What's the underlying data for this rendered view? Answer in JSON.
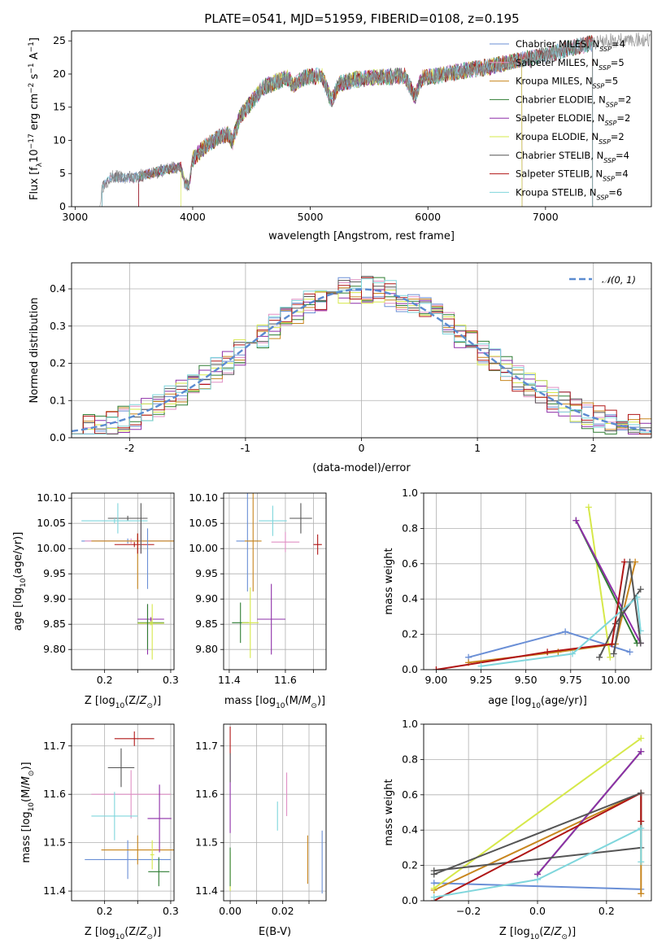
{
  "figure_title": "PLATE=0541, MJD=51959, FIBERID=0108, z=0.195",
  "colors": {
    "chabrier_miles": "#6a8fd6",
    "salpeter_miles": "#e08fc4",
    "kroupa_miles": "#c8861e",
    "chabrier_elodie": "#2e7d32",
    "salpeter_elodie": "#8e2fa8",
    "kroupa_elodie": "#d6e84a",
    "chabrier_stelib": "#555555",
    "salpeter_stelib": "#b01616",
    "kroupa_stelib": "#7fd6dc"
  },
  "chart_data": [
    {
      "id": "spectrum",
      "type": "line",
      "title": "PLATE=0541, MJD=51959, FIBERID=0108, z=0.195",
      "xlabel": "wavelength [Angstrom, rest frame]",
      "ylabel_parts": [
        "Flux [f",
        "λ",
        "10",
        "−17",
        " erg cm",
        "−2",
        " s",
        "−1",
        " A",
        "−1",
        "]"
      ],
      "xlim": [
        2970,
        7900
      ],
      "ylim": [
        0,
        26.5
      ],
      "xticks": [
        3000,
        4000,
        5000,
        6000,
        7000
      ],
      "yticks": [
        0,
        5,
        10,
        15,
        20,
        25
      ],
      "continuum": [
        [
          3210,
          0
        ],
        [
          3230,
          3.0
        ],
        [
          3300,
          4.5
        ],
        [
          3500,
          4.3
        ],
        [
          3700,
          5.3
        ],
        [
          3900,
          6.0
        ],
        [
          3935,
          3.4
        ],
        [
          3970,
          3.3
        ],
        [
          4000,
          7.2
        ],
        [
          4100,
          9.0
        ],
        [
          4200,
          10.2
        ],
        [
          4300,
          11.0
        ],
        [
          4340,
          9.8
        ],
        [
          4400,
          13.5
        ],
        [
          4600,
          18.0
        ],
        [
          4800,
          19.5
        ],
        [
          4860,
          18.3
        ],
        [
          4950,
          19.5
        ],
        [
          5100,
          19.8
        ],
        [
          5175,
          16.0
        ],
        [
          5250,
          18.6
        ],
        [
          5400,
          19.2
        ],
        [
          5600,
          19.5
        ],
        [
          5800,
          19.8
        ],
        [
          5890,
          16.6
        ],
        [
          5950,
          19.4
        ],
        [
          6100,
          19.8
        ],
        [
          6300,
          20.5
        ],
        [
          6500,
          21.0
        ],
        [
          6700,
          21.8
        ],
        [
          6900,
          22.5
        ],
        [
          7100,
          23.3
        ],
        [
          7300,
          24.3
        ],
        [
          7500,
          25.0
        ],
        [
          7800,
          25.2
        ],
        [
          7890,
          25.2
        ]
      ],
      "model_starts": [
        3230,
        3230,
        3540,
        3540,
        3540,
        3900,
        3230,
        3540,
        3230
      ],
      "model_ends": [
        7400,
        7400,
        6800,
        7400,
        6800,
        6800,
        7400,
        7400,
        7400
      ],
      "legend": [
        {
          "name": "Chabrier MILES",
          "n": "4",
          "color": "#6a8fd6"
        },
        {
          "name": "Salpeter MILES",
          "n": "5",
          "color": "#e08fc4"
        },
        {
          "name": "Kroupa MILES",
          "n": "5",
          "color": "#c8861e"
        },
        {
          "name": "Chabrier ELODIE",
          "n": "2",
          "color": "#2e7d32"
        },
        {
          "name": "Salpeter ELODIE",
          "n": "2",
          "color": "#8e2fa8"
        },
        {
          "name": "Kroupa ELODIE",
          "n": "2",
          "color": "#d6e84a"
        },
        {
          "name": "Chabrier STELIB",
          "n": "4",
          "color": "#555555"
        },
        {
          "name": "Salpeter STELIB",
          "n": "4",
          "color": "#b01616"
        },
        {
          "name": "Kroupa STELIB",
          "n": "6",
          "color": "#7fd6dc"
        }
      ],
      "legend_sub": "SSP",
      "legend_placement": "right"
    },
    {
      "id": "residuals",
      "type": "step-histogram",
      "xlabel": "(data-model)/error",
      "ylabel": "Normed distribution",
      "xlim": [
        -2.5,
        2.5
      ],
      "ylim": [
        0,
        0.47
      ],
      "xticks": [
        -2,
        -1,
        0,
        1,
        2
      ],
      "yticks": [
        0.0,
        0.1,
        0.2,
        0.3,
        0.4
      ],
      "bin_width": 0.1,
      "bin_start": -2.5,
      "grid": true,
      "legend_label": "𝒩(0, 1)",
      "legend_color": "#5b8bd0",
      "legend_placement": "top-right",
      "series_colors": [
        "#6a8fd6",
        "#e08fc4",
        "#c8861e",
        "#2e7d32",
        "#8e2fa8",
        "#d6e84a",
        "#555555",
        "#b01616",
        "#7fd6dc"
      ]
    },
    {
      "id": "age_vs_z",
      "type": "errorbar",
      "xlabel": "Z [log10(Z/Z⊙)]",
      "ylabel": "age  [log10(age/yr)]",
      "xlim": [
        0.15,
        0.305
      ],
      "ylim": [
        9.76,
        10.11
      ],
      "xticks": [
        0.2,
        0.25,
        0.3
      ],
      "xticklabels": [
        "0.2",
        "",
        "0.3"
      ],
      "yticks": [
        9.8,
        9.85,
        9.9,
        9.95,
        10.0,
        10.05,
        10.1
      ],
      "grid": true,
      "points": [
        {
          "x": 0.235,
          "xe": 0.07,
          "y": 10.015,
          "ye": 0.005,
          "c": "#6a8fd6"
        },
        {
          "x": 0.24,
          "xe": 0.07,
          "y": 10.015,
          "ye": 0.005,
          "c": "#e08fc4"
        },
        {
          "x": 0.25,
          "xe": 0.07,
          "y": 10.015,
          "ye": 0.005,
          "c": "#c8861e"
        },
        {
          "x": 0.27,
          "xe": 0.02,
          "y": 9.853,
          "ye": 0.004,
          "c": "#2e7d32"
        },
        {
          "x": 0.27,
          "xe": 0.02,
          "y": 9.86,
          "ye": 0.004,
          "c": "#8e2fa8"
        },
        {
          "x": 0.27,
          "xe": 0.02,
          "y": 9.852,
          "ye": 0.004,
          "c": "#d6e84a"
        },
        {
          "x": 0.235,
          "xe": 0.03,
          "y": 10.06,
          "ye": 0.005,
          "c": "#555555"
        },
        {
          "x": 0.245,
          "xe": 0.03,
          "y": 10.008,
          "ye": 0.005,
          "c": "#b01616"
        },
        {
          "x": 0.215,
          "xe": 0.05,
          "y": 10.055,
          "ye": 0.005,
          "c": "#7fd6dc"
        }
      ],
      "vbars": [
        {
          "x": 0.25,
          "y0": 9.92,
          "y1": 10.03,
          "c": "#c8861e"
        },
        {
          "x": 0.265,
          "y0": 9.92,
          "y1": 10.04,
          "c": "#6a8fd6"
        },
        {
          "x": 0.255,
          "y0": 9.99,
          "y1": 10.05,
          "c": "#e08fc4"
        },
        {
          "x": 0.255,
          "y0": 9.99,
          "y1": 10.09,
          "c": "#555555"
        },
        {
          "x": 0.265,
          "y0": 9.79,
          "y1": 9.89,
          "c": "#8e2fa8"
        },
        {
          "x": 0.272,
          "y0": 9.78,
          "y1": 9.89,
          "c": "#d6e84a"
        },
        {
          "x": 0.265,
          "y0": 9.8,
          "y1": 9.89,
          "c": "#2e7d32"
        },
        {
          "x": 0.25,
          "y0": 9.99,
          "y1": 10.03,
          "c": "#b01616"
        },
        {
          "x": 0.22,
          "y0": 10.03,
          "y1": 10.09,
          "c": "#7fd6dc"
        }
      ]
    },
    {
      "id": "age_vs_mass",
      "type": "errorbar",
      "xlabel": "mass [log10(M/M⊙)]",
      "xlim": [
        11.38,
        11.745
      ],
      "ylim": [
        9.76,
        10.11
      ],
      "xticks": [
        11.4,
        11.5,
        11.6,
        11.7
      ],
      "xticklabels": [
        "11.4",
        "",
        "11.6",
        ""
      ],
      "yticks": [
        9.8,
        9.85,
        9.9,
        9.95,
        10.0,
        10.05,
        10.1
      ],
      "grid": true,
      "points": [
        {
          "x": 11.465,
          "xe": 0.04,
          "y": 10.015,
          "ye": 0.1,
          "c": "#6a8fd6"
        },
        {
          "x": 11.6,
          "xe": 0.05,
          "y": 10.013,
          "ye": 0.02,
          "c": "#e08fc4"
        },
        {
          "x": 11.485,
          "xe": 0.03,
          "y": 10.015,
          "ye": 0.1,
          "c": "#c8861e"
        },
        {
          "x": 11.44,
          "xe": 0.03,
          "y": 9.853,
          "ye": 0.04,
          "c": "#2e7d32"
        },
        {
          "x": 11.55,
          "xe": 0.05,
          "y": 9.86,
          "ye": 0.07,
          "c": "#8e2fa8"
        },
        {
          "x": 11.475,
          "xe": 0.03,
          "y": 9.853,
          "ye": 0.07,
          "c": "#d6e84a"
        },
        {
          "x": 11.655,
          "xe": 0.04,
          "y": 10.06,
          "ye": 0.03,
          "c": "#555555"
        },
        {
          "x": 11.715,
          "xe": 0.015,
          "y": 10.008,
          "ye": 0.02,
          "c": "#b01616"
        },
        {
          "x": 11.555,
          "xe": 0.05,
          "y": 10.055,
          "ye": 0.03,
          "c": "#7fd6dc"
        }
      ]
    },
    {
      "id": "weight_vs_age",
      "type": "line",
      "xlabel": "age  [log10(age/yr)]",
      "ylabel": "mass weight",
      "xlim": [
        8.93,
        10.2
      ],
      "ylim": [
        0,
        1.0
      ],
      "xticks": [
        9.0,
        9.25,
        9.5,
        9.75,
        10.0
      ],
      "xticklabels": [
        "9.00",
        "9.25",
        "9.50",
        "9.75",
        "10.00"
      ],
      "yticks": [
        0.0,
        0.2,
        0.4,
        0.6,
        0.8,
        1.0
      ],
      "grid": true,
      "series": [
        {
          "c": "#6a8fd6",
          "x": [
            9.18,
            9.72,
            10.08
          ],
          "y": [
            0.07,
            0.215,
            0.1
          ]
        },
        {
          "c": "#c8861e",
          "x": [
            9.18,
            9.68,
            10.0,
            10.11
          ],
          "y": [
            0.04,
            0.1,
            0.145,
            0.61
          ]
        },
        {
          "c": "#d6e84a",
          "x": [
            9.85,
            9.97
          ],
          "y": [
            0.92,
            0.07
          ]
        },
        {
          "c": "#2e7d32",
          "x": [
            9.78,
            10.12
          ],
          "y": [
            0.845,
            0.15
          ]
        },
        {
          "c": "#8e2fa8",
          "x": [
            9.78,
            10.14
          ],
          "y": [
            0.845,
            0.15
          ]
        },
        {
          "c": "#555555",
          "x": [
            9.91,
            10.0,
            10.14
          ],
          "y": [
            0.07,
            0.26,
            0.455
          ]
        },
        {
          "c": "#b01616",
          "x": [
            9.0,
            9.62,
            9.98,
            10.05
          ],
          "y": [
            0.0,
            0.1,
            0.145,
            0.61
          ]
        },
        {
          "c": "#7fd6dc",
          "x": [
            9.25,
            9.76,
            10.12,
            10.14
          ],
          "y": [
            0.02,
            0.09,
            0.41,
            0.22
          ]
        },
        {
          "c": "#555555",
          "x": [
            9.99,
            10.08,
            10.14
          ],
          "y": [
            0.09,
            0.61,
            0.15
          ]
        }
      ]
    },
    {
      "id": "mass_vs_z",
      "type": "errorbar",
      "xlabel": "Z [log10(Z/Z⊙)]",
      "ylabel": "mass [log10(M/M⊙)]",
      "xlim": [
        0.15,
        0.305
      ],
      "ylim": [
        11.38,
        11.745
      ],
      "xticks": [
        0.2,
        0.25,
        0.3
      ],
      "xticklabels": [
        "0.2",
        "",
        "0.3"
      ],
      "yticks": [
        11.4,
        11.5,
        11.6,
        11.7
      ],
      "grid": true,
      "points": [
        {
          "x": 0.235,
          "xe": 0.065,
          "y": 11.465,
          "ye": 0.04,
          "c": "#6a8fd6"
        },
        {
          "x": 0.24,
          "xe": 0.06,
          "y": 11.6,
          "ye": 0.05,
          "c": "#e08fc4"
        },
        {
          "x": 0.25,
          "xe": 0.055,
          "y": 11.485,
          "ye": 0.03,
          "c": "#c8861e"
        },
        {
          "x": 0.282,
          "xe": 0.016,
          "y": 11.44,
          "ye": 0.03,
          "c": "#2e7d32"
        },
        {
          "x": 0.283,
          "xe": 0.018,
          "y": 11.55,
          "ye": 0.07,
          "c": "#8e2fa8"
        },
        {
          "x": 0.272,
          "xe": 0.003,
          "y": 11.475,
          "ye": 0.03,
          "c": "#d6e84a"
        },
        {
          "x": 0.225,
          "xe": 0.02,
          "y": 11.655,
          "ye": 0.04,
          "c": "#555555"
        },
        {
          "x": 0.245,
          "xe": 0.03,
          "y": 11.715,
          "ye": 0.015,
          "c": "#b01616"
        },
        {
          "x": 0.215,
          "xe": 0.035,
          "y": 11.555,
          "ye": 0.05,
          "c": "#7fd6dc"
        }
      ]
    },
    {
      "id": "mass_vs_ebv",
      "type": "errorbar",
      "xlabel": "E(B-V)",
      "xlim": [
        -0.0025,
        0.0365
      ],
      "ylim": [
        11.38,
        11.745
      ],
      "xticks": [
        0.0,
        0.01,
        0.02,
        0.03
      ],
      "xticklabels": [
        "0.00",
        "",
        "0.02",
        ""
      ],
      "yticks": [
        11.4,
        11.5,
        11.6,
        11.7
      ],
      "grid": true,
      "points": [
        {
          "x": 0.0,
          "xe": 0.0,
          "y": 11.44,
          "ye": 0.04,
          "c": "#d6e84a"
        },
        {
          "x": 0.0,
          "xe": 0.0,
          "y": 11.6,
          "ye": 0.08,
          "c": "#8e2fa8"
        },
        {
          "x": 0.0,
          "xe": 0.0,
          "y": 11.71,
          "ye": 0.03,
          "c": "#b01616"
        },
        {
          "x": 0.0,
          "xe": 0.0,
          "y": 11.655,
          "ye": 0.03,
          "c": "#555555"
        },
        {
          "x": 0.0,
          "xe": 0.0,
          "y": 11.45,
          "ye": 0.04,
          "c": "#2e7d32"
        },
        {
          "x": 0.018,
          "xe": 0.0,
          "y": 11.555,
          "ye": 0.03,
          "c": "#7fd6dc"
        },
        {
          "x": 0.0215,
          "xe": 0.0,
          "y": 11.6,
          "ye": 0.045,
          "c": "#e08fc4"
        },
        {
          "x": 0.0295,
          "xe": 0.0,
          "y": 11.465,
          "ye": 0.05,
          "c": "#c8861e"
        },
        {
          "x": 0.035,
          "xe": 0.0,
          "y": 11.46,
          "ye": 0.065,
          "c": "#6a8fd6"
        }
      ]
    },
    {
      "id": "weight_vs_z",
      "type": "line",
      "xlabel": "Z [log10(Z/Z⊙)]",
      "ylabel": "mass weight",
      "xlim": [
        -0.33,
        0.33
      ],
      "ylim": [
        0,
        1.0
      ],
      "xticks": [
        -0.2,
        0.0,
        0.2
      ],
      "xticklabels": [
        "−0.2",
        "0.0",
        "0.2"
      ],
      "yticks": [
        0.0,
        0.2,
        0.4,
        0.6,
        0.8,
        1.0
      ],
      "grid": true,
      "series": [
        {
          "c": "#6a8fd6",
          "x": [
            -0.3,
            0.3
          ],
          "y": [
            0.1,
            0.065
          ]
        },
        {
          "c": "#c8861e",
          "x": [
            -0.3,
            0.3,
            0.3
          ],
          "y": [
            0.06,
            0.61,
            0.04
          ]
        },
        {
          "c": "#d6e84a",
          "x": [
            -0.3,
            0.3
          ],
          "y": [
            0.07,
            0.92
          ]
        },
        {
          "c": "#2e7d32",
          "x": [
            0.0,
            0.3
          ],
          "y": [
            0.15,
            0.845
          ]
        },
        {
          "c": "#8e2fa8",
          "x": [
            0.0,
            0.3
          ],
          "y": [
            0.15,
            0.845
          ]
        },
        {
          "c": "#555555",
          "x": [
            -0.3,
            0.3,
            0.3
          ],
          "y": [
            0.17,
            0.3,
            0.61
          ]
        },
        {
          "c": "#b01616",
          "x": [
            -0.3,
            0.3,
            0.3
          ],
          "y": [
            0.0,
            0.61,
            0.45
          ]
        },
        {
          "c": "#7fd6dc",
          "x": [
            -0.3,
            0.0,
            0.3,
            0.3
          ],
          "y": [
            0.02,
            0.12,
            0.41,
            0.22
          ]
        },
        {
          "c": "#555555",
          "x": [
            -0.3,
            0.3
          ],
          "y": [
            0.15,
            0.61
          ]
        }
      ]
    }
  ]
}
